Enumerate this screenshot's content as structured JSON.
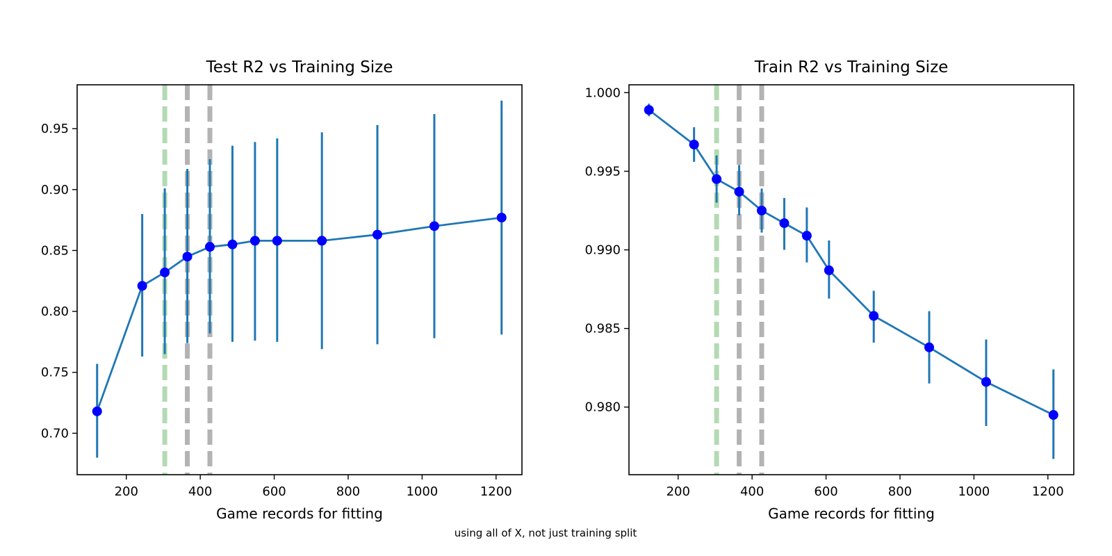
{
  "chart_data": [
    {
      "type": "line",
      "title": "Test R2 vs Training Size",
      "xlabel": "Game records for fitting",
      "ylabel": "",
      "xlim": [
        67,
        1270
      ],
      "ylim": [
        0.666,
        0.986
      ],
      "xticks": [
        200,
        400,
        600,
        800,
        1000,
        1200
      ],
      "yticks": [
        0.7,
        0.75,
        0.8,
        0.85,
        0.9,
        0.95
      ],
      "ytick_decimals": 2,
      "grid": false,
      "x": [
        121,
        243,
        304,
        365,
        426,
        487,
        548,
        608,
        729,
        879,
        1033,
        1215
      ],
      "y": [
        0.718,
        0.821,
        0.832,
        0.845,
        0.853,
        0.855,
        0.858,
        0.858,
        0.858,
        0.863,
        0.87,
        0.877
      ],
      "yerr_low": [
        0.68,
        0.763,
        0.765,
        0.774,
        0.782,
        0.775,
        0.776,
        0.775,
        0.769,
        0.773,
        0.778,
        0.781
      ],
      "yerr_high": [
        0.757,
        0.88,
        0.901,
        0.917,
        0.925,
        0.936,
        0.939,
        0.942,
        0.947,
        0.953,
        0.962,
        0.973
      ],
      "vlines": [
        {
          "x": 304,
          "color": "#b3dab3"
        },
        {
          "x": 365,
          "color": "#b3b3b3"
        },
        {
          "x": 426,
          "color": "#b3b3b3"
        }
      ],
      "colors": {
        "line": "#1f77b4",
        "marker": "#0000ff",
        "errorbar": "#1f77b4"
      }
    },
    {
      "type": "line",
      "title": "Train R2 vs Training Size",
      "xlabel": "Game records for fitting",
      "ylabel": "",
      "xlim": [
        67,
        1270
      ],
      "ylim": [
        0.9757,
        1.0005
      ],
      "xticks": [
        200,
        400,
        600,
        800,
        1000,
        1200
      ],
      "yticks": [
        0.98,
        0.985,
        0.99,
        0.995,
        1.0
      ],
      "ytick_decimals": 3,
      "grid": false,
      "x": [
        121,
        243,
        304,
        365,
        426,
        487,
        548,
        608,
        729,
        879,
        1033,
        1215
      ],
      "y": [
        0.9989,
        0.9967,
        0.9945,
        0.9937,
        0.9925,
        0.9917,
        0.9909,
        0.9887,
        0.9858,
        0.9838,
        0.9816,
        0.9795
      ],
      "yerr_low": [
        0.9985,
        0.9956,
        0.993,
        0.9922,
        0.9911,
        0.99,
        0.9892,
        0.9869,
        0.9841,
        0.9815,
        0.9788,
        0.9767
      ],
      "yerr_high": [
        0.9993,
        0.9978,
        0.996,
        0.9954,
        0.9939,
        0.9933,
        0.9927,
        0.9906,
        0.9874,
        0.9861,
        0.9843,
        0.9824
      ],
      "vlines": [
        {
          "x": 304,
          "color": "#b3dab3"
        },
        {
          "x": 365,
          "color": "#b3b3b3"
        },
        {
          "x": 426,
          "color": "#b3b3b3"
        }
      ],
      "colors": {
        "line": "#1f77b4",
        "marker": "#0000ff",
        "errorbar": "#1f77b4"
      }
    }
  ],
  "caption": "using all of X, not just training split"
}
